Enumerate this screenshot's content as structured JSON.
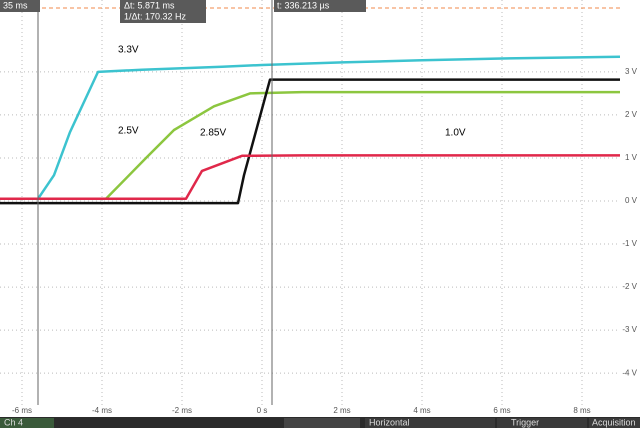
{
  "chart_data": {
    "type": "line",
    "xlim": [
      -6.55,
      8.95
    ],
    "ylim": [
      -4.74,
      4.67
    ],
    "xticks": [
      {
        "value": -6,
        "label": "-6 ms"
      },
      {
        "value": -4,
        "label": "-4 ms"
      },
      {
        "value": -2,
        "label": "-2 ms"
      },
      {
        "value": 0,
        "label": "0 s"
      },
      {
        "value": 2,
        "label": "2 ms"
      },
      {
        "value": 4,
        "label": "4 ms"
      },
      {
        "value": 6,
        "label": "6 ms"
      },
      {
        "value": 8,
        "label": "8 ms"
      }
    ],
    "yticks": [
      {
        "value": 3,
        "label": "3 V"
      },
      {
        "value": 2,
        "label": "2 V"
      },
      {
        "value": 1,
        "label": "1 V"
      },
      {
        "value": 0,
        "label": "0 V"
      },
      {
        "value": -1,
        "label": "-1 V"
      },
      {
        "value": -2,
        "label": "-2 V"
      },
      {
        "value": -3,
        "label": "-3 V"
      },
      {
        "value": -4,
        "label": "-4 V"
      }
    ],
    "grid": true,
    "series": [
      {
        "name": "3.3V",
        "color": "#3cc3cf",
        "x": [
          -6.55,
          -5.6,
          -5.2,
          -4.8,
          -4.1,
          -3,
          -1,
          0,
          2,
          4,
          6,
          8.95
        ],
        "values": [
          0.05,
          0.05,
          0.6,
          1.6,
          3.0,
          3.05,
          3.12,
          3.16,
          3.22,
          3.27,
          3.31,
          3.35
        ]
      },
      {
        "name": "2.5V",
        "color": "#8cc63f",
        "x": [
          -6.55,
          -3.9,
          -2.9,
          -2.2,
          -1.2,
          -0.3,
          1,
          4,
          8.95
        ],
        "values": [
          0.05,
          0.05,
          1.0,
          1.65,
          2.2,
          2.5,
          2.53,
          2.53,
          2.53
        ]
      },
      {
        "name": "2.85V",
        "color": "#111111",
        "x": [
          -6.55,
          -0.6,
          -0.45,
          0.2,
          1,
          4,
          8.95
        ],
        "values": [
          -0.05,
          -0.05,
          0.6,
          2.82,
          2.82,
          2.82,
          2.82
        ]
      },
      {
        "name": "1.0V",
        "color": "#e0284a",
        "x": [
          -6.55,
          -1.9,
          -1.5,
          -0.5,
          1,
          4,
          8.95
        ],
        "values": [
          0.05,
          0.05,
          0.7,
          1.05,
          1.06,
          1.06,
          1.06
        ]
      }
    ]
  },
  "readouts": {
    "delay": "35 ms",
    "delta_t": "Δt: 5.871 ms",
    "inv_delta_t": "1/Δt: 170.32 Hz",
    "cursor_t": "t: 336.213 µs"
  },
  "toolbar": {
    "channel": "Ch 4",
    "horizontal": "Horizontal",
    "trigger": "Trigger",
    "acquisition": "Acquisition"
  }
}
